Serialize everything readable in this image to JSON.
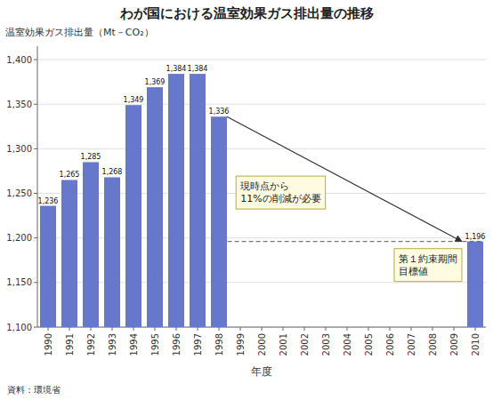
{
  "chart_data": {
    "type": "bar",
    "title": "わが国における温室効果ガス排出量の推移",
    "y_label": "温室効果ガス排出量（Mt－CO₂）",
    "x_label": "年度",
    "source": "資料：環境省",
    "categories": [
      "1990",
      "1991",
      "1992",
      "1993",
      "1994",
      "1995",
      "1996",
      "1997",
      "1998",
      "1999",
      "2000",
      "2001",
      "2002",
      "2003",
      "2004",
      "2005",
      "2006",
      "2007",
      "2008",
      "2009",
      "2010"
    ],
    "values": [
      1236,
      1265,
      1285,
      1268,
      1349,
      1369,
      1384,
      1384,
      1336,
      null,
      null,
      null,
      null,
      null,
      null,
      null,
      null,
      null,
      null,
      null,
      1196
    ],
    "value_labels": [
      "1,236",
      "1,265",
      "1,285",
      "1,268",
      "1,349",
      "1,369",
      "1,384",
      "1,384",
      "1,336",
      null,
      null,
      null,
      null,
      null,
      null,
      null,
      null,
      null,
      null,
      null,
      "1,196"
    ],
    "color": "#6677cc",
    "ylim": [
      1100,
      1415
    ],
    "yticks": [
      {
        "value": 1100,
        "label": "1,100"
      },
      {
        "value": 1150,
        "label": "1,150"
      },
      {
        "value": 1200,
        "label": "1,200"
      },
      {
        "value": 1250,
        "label": "1,250"
      },
      {
        "value": 1300,
        "label": "1,300"
      },
      {
        "value": 1350,
        "label": "1,350"
      },
      {
        "value": 1400,
        "label": "1,400"
      }
    ],
    "annotations": [
      "現時点から\n11%の削減が必要",
      "第１約束期間\n目標値"
    ],
    "grid": true,
    "data_labels": true
  }
}
